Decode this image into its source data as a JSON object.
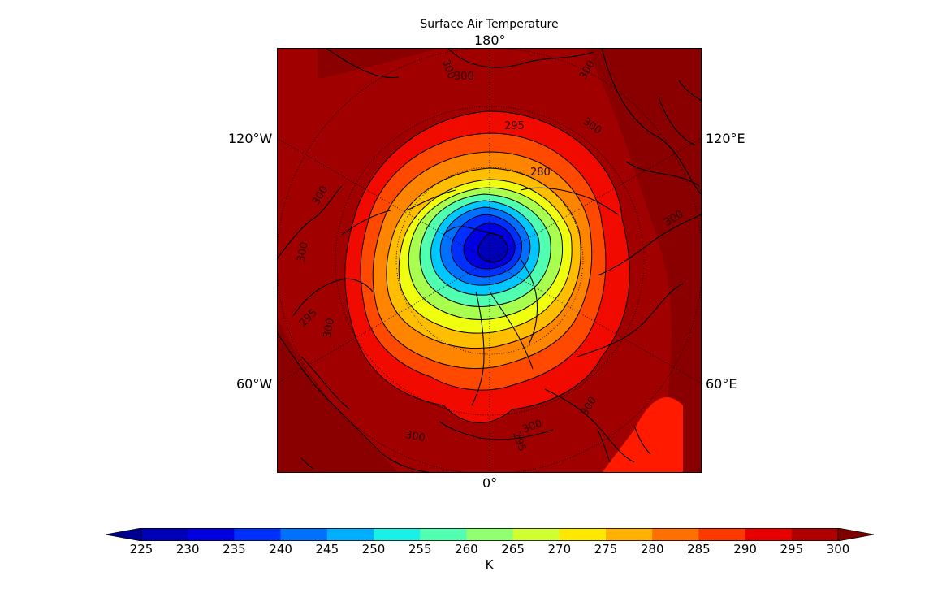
{
  "title": "Surface Air Temperature",
  "longitude_labels": {
    "top": "180°",
    "bottom": "0°",
    "left_upper": "120°W",
    "left_lower": "60°W",
    "right_upper": "120°E",
    "right_lower": "60°E"
  },
  "contour_labels": [
    "300",
    "300",
    "300",
    "300",
    "295",
    "280",
    "300",
    "300",
    "300",
    "300",
    "295",
    "300",
    "300",
    "300",
    "295"
  ],
  "colorbar": {
    "unit_label": "K",
    "extend": "both",
    "levels": [
      225,
      230,
      235,
      240,
      245,
      250,
      255,
      260,
      265,
      270,
      275,
      280,
      285,
      290,
      295,
      300
    ],
    "tick_labels": [
      "225",
      "230",
      "235",
      "240",
      "245",
      "250",
      "255",
      "260",
      "265",
      "270",
      "275",
      "280",
      "285",
      "290",
      "295",
      "300"
    ],
    "colors": [
      "#00008f",
      "#0000b8",
      "#0000e0",
      "#0030ff",
      "#0070ff",
      "#00b0ff",
      "#18f0e8",
      "#50ffb0",
      "#90ff70",
      "#d0ff30",
      "#ffe800",
      "#ffb000",
      "#ff7000",
      "#ff3800",
      "#e80000",
      "#b00000",
      "#800000"
    ]
  },
  "map": {
    "projection": "north polar stereographic",
    "field": "surface air temperature",
    "colors": {
      "background": "#a00000",
      "ocean_warm": "#8c0000",
      "land_outline": "#000000",
      "graticule": "#000000"
    }
  }
}
